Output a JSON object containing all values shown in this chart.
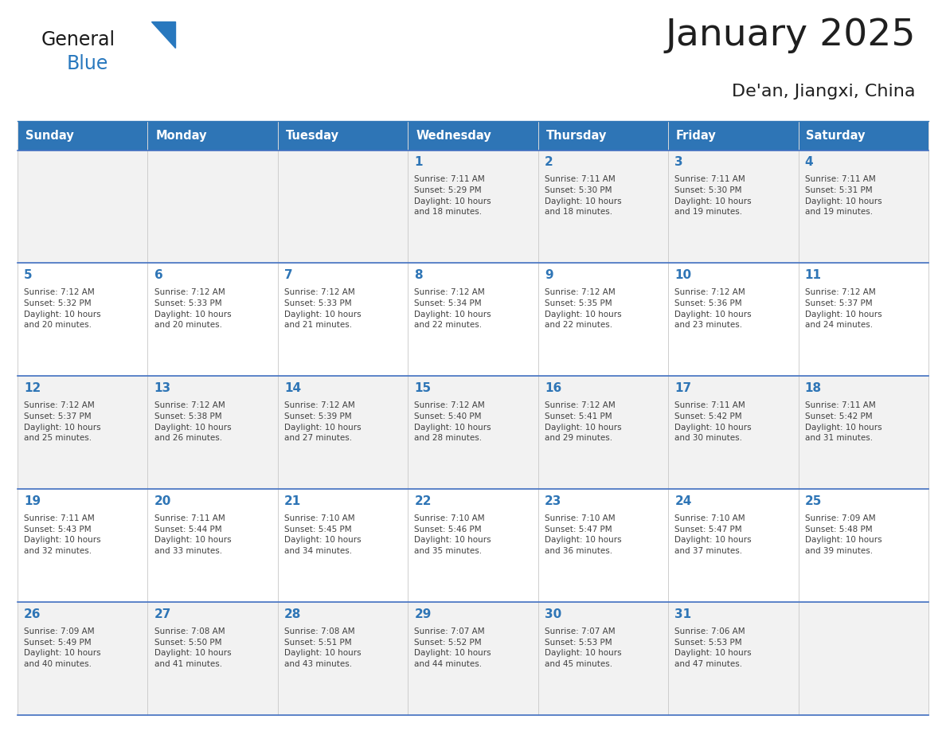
{
  "title": "January 2025",
  "subtitle": "De'an, Jiangxi, China",
  "header_bg": "#2E75B6",
  "header_text_color": "#FFFFFF",
  "cell_bg_even": "#F2F2F2",
  "cell_bg_odd": "#FFFFFF",
  "row_separator_color": "#4472C4",
  "cell_border_color": "#CCCCCC",
  "title_color": "#1F1F1F",
  "day_num_color": "#2E75B6",
  "text_color": "#404040",
  "logo_general_color": "#1A1A1A",
  "logo_blue_color": "#2878BE",
  "logo_triangle_color": "#2878BE",
  "day_headers": [
    "Sunday",
    "Monday",
    "Tuesday",
    "Wednesday",
    "Thursday",
    "Friday",
    "Saturday"
  ],
  "calendar_data": [
    [
      "",
      "",
      "",
      "1\nSunrise: 7:11 AM\nSunset: 5:29 PM\nDaylight: 10 hours\nand 18 minutes.",
      "2\nSunrise: 7:11 AM\nSunset: 5:30 PM\nDaylight: 10 hours\nand 18 minutes.",
      "3\nSunrise: 7:11 AM\nSunset: 5:30 PM\nDaylight: 10 hours\nand 19 minutes.",
      "4\nSunrise: 7:11 AM\nSunset: 5:31 PM\nDaylight: 10 hours\nand 19 minutes."
    ],
    [
      "5\nSunrise: 7:12 AM\nSunset: 5:32 PM\nDaylight: 10 hours\nand 20 minutes.",
      "6\nSunrise: 7:12 AM\nSunset: 5:33 PM\nDaylight: 10 hours\nand 20 minutes.",
      "7\nSunrise: 7:12 AM\nSunset: 5:33 PM\nDaylight: 10 hours\nand 21 minutes.",
      "8\nSunrise: 7:12 AM\nSunset: 5:34 PM\nDaylight: 10 hours\nand 22 minutes.",
      "9\nSunrise: 7:12 AM\nSunset: 5:35 PM\nDaylight: 10 hours\nand 22 minutes.",
      "10\nSunrise: 7:12 AM\nSunset: 5:36 PM\nDaylight: 10 hours\nand 23 minutes.",
      "11\nSunrise: 7:12 AM\nSunset: 5:37 PM\nDaylight: 10 hours\nand 24 minutes."
    ],
    [
      "12\nSunrise: 7:12 AM\nSunset: 5:37 PM\nDaylight: 10 hours\nand 25 minutes.",
      "13\nSunrise: 7:12 AM\nSunset: 5:38 PM\nDaylight: 10 hours\nand 26 minutes.",
      "14\nSunrise: 7:12 AM\nSunset: 5:39 PM\nDaylight: 10 hours\nand 27 minutes.",
      "15\nSunrise: 7:12 AM\nSunset: 5:40 PM\nDaylight: 10 hours\nand 28 minutes.",
      "16\nSunrise: 7:12 AM\nSunset: 5:41 PM\nDaylight: 10 hours\nand 29 minutes.",
      "17\nSunrise: 7:11 AM\nSunset: 5:42 PM\nDaylight: 10 hours\nand 30 minutes.",
      "18\nSunrise: 7:11 AM\nSunset: 5:42 PM\nDaylight: 10 hours\nand 31 minutes."
    ],
    [
      "19\nSunrise: 7:11 AM\nSunset: 5:43 PM\nDaylight: 10 hours\nand 32 minutes.",
      "20\nSunrise: 7:11 AM\nSunset: 5:44 PM\nDaylight: 10 hours\nand 33 minutes.",
      "21\nSunrise: 7:10 AM\nSunset: 5:45 PM\nDaylight: 10 hours\nand 34 minutes.",
      "22\nSunrise: 7:10 AM\nSunset: 5:46 PM\nDaylight: 10 hours\nand 35 minutes.",
      "23\nSunrise: 7:10 AM\nSunset: 5:47 PM\nDaylight: 10 hours\nand 36 minutes.",
      "24\nSunrise: 7:10 AM\nSunset: 5:47 PM\nDaylight: 10 hours\nand 37 minutes.",
      "25\nSunrise: 7:09 AM\nSunset: 5:48 PM\nDaylight: 10 hours\nand 39 minutes."
    ],
    [
      "26\nSunrise: 7:09 AM\nSunset: 5:49 PM\nDaylight: 10 hours\nand 40 minutes.",
      "27\nSunrise: 7:08 AM\nSunset: 5:50 PM\nDaylight: 10 hours\nand 41 minutes.",
      "28\nSunrise: 7:08 AM\nSunset: 5:51 PM\nDaylight: 10 hours\nand 43 minutes.",
      "29\nSunrise: 7:07 AM\nSunset: 5:52 PM\nDaylight: 10 hours\nand 44 minutes.",
      "30\nSunrise: 7:07 AM\nSunset: 5:53 PM\nDaylight: 10 hours\nand 45 minutes.",
      "31\nSunrise: 7:06 AM\nSunset: 5:53 PM\nDaylight: 10 hours\nand 47 minutes.",
      ""
    ]
  ]
}
